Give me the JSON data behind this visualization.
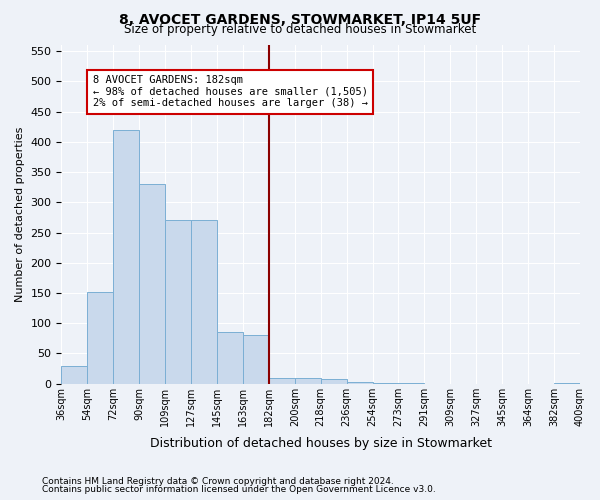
{
  "title": "8, AVOCET GARDENS, STOWMARKET, IP14 5UF",
  "subtitle": "Size of property relative to detached houses in Stowmarket",
  "xlabel": "Distribution of detached houses by size in Stowmarket",
  "ylabel": "Number of detached properties",
  "footnote1": "Contains HM Land Registry data © Crown copyright and database right 2024.",
  "footnote2": "Contains public sector information licensed under the Open Government Licence v3.0.",
  "bin_labels": [
    "36sqm",
    "54sqm",
    "72sqm",
    "90sqm",
    "109sqm",
    "127sqm",
    "145sqm",
    "163sqm",
    "182sqm",
    "200sqm",
    "218sqm",
    "236sqm",
    "254sqm",
    "273sqm",
    "291sqm",
    "309sqm",
    "327sqm",
    "345sqm",
    "364sqm",
    "382sqm",
    "400sqm"
  ],
  "bar_values": [
    30,
    152,
    420,
    330,
    270,
    270,
    85,
    80,
    10,
    10,
    8,
    3,
    1,
    1,
    0,
    0,
    0,
    0,
    0,
    1
  ],
  "annotation_title": "8 AVOCET GARDENS: 182sqm",
  "annotation_line1": "← 98% of detached houses are smaller (1,505)",
  "annotation_line2": "2% of semi-detached houses are larger (38) →",
  "bar_color": "#c9d9ec",
  "bar_edge_color": "#7bafd4",
  "vline_color": "#8b0000",
  "annotation_box_color": "#ffffff",
  "annotation_box_edge": "#cc0000",
  "bg_color": "#eef2f8",
  "ylim": [
    0,
    560
  ],
  "yticks": [
    0,
    50,
    100,
    150,
    200,
    250,
    300,
    350,
    400,
    450,
    500,
    550
  ]
}
